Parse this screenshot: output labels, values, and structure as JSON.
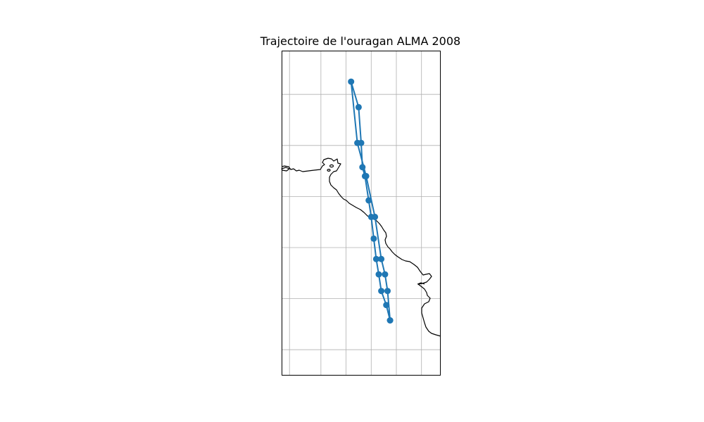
{
  "map": {
    "title": "Trajectoire de l'ouragan ALMA 2008",
    "projection": "PlateCarree",
    "extent": {
      "lon": [
        -93.9,
        -81.3
      ],
      "lat": [
        3.0,
        28.4
      ]
    },
    "gridlines": {
      "lon": [
        -93.3,
        -90.8,
        -88.8,
        -86.8,
        -84.8,
        -82.8
      ],
      "lat": [
        5.0,
        9.0,
        13.0,
        17.0,
        21.0,
        25.0
      ]
    },
    "track_color": "#1f77b4",
    "coast_color": "#000000",
    "grid_color": "#b0b0b0"
  },
  "chart_data": {
    "type": "line",
    "marker": "circle",
    "series": [
      {
        "lon": [
          -85.3,
          -85.6,
          -86.0,
          -86.2,
          -86.4,
          -86.6,
          -86.8,
          -87.0,
          -87.3,
          -87.5,
          -87.6,
          -87.8,
          -88.4,
          -87.9,
          -87.2,
          -86.5,
          -86.0,
          -85.7,
          -85.5,
          -85.3
        ],
        "lat": [
          7.3,
          8.5,
          9.6,
          10.9,
          12.1,
          13.7,
          15.4,
          16.7,
          18.6,
          19.3,
          21.2,
          24.0,
          26.0,
          21.2,
          18.6,
          15.4,
          12.1,
          10.9,
          9.6,
          7.3
        ]
      }
    ]
  }
}
